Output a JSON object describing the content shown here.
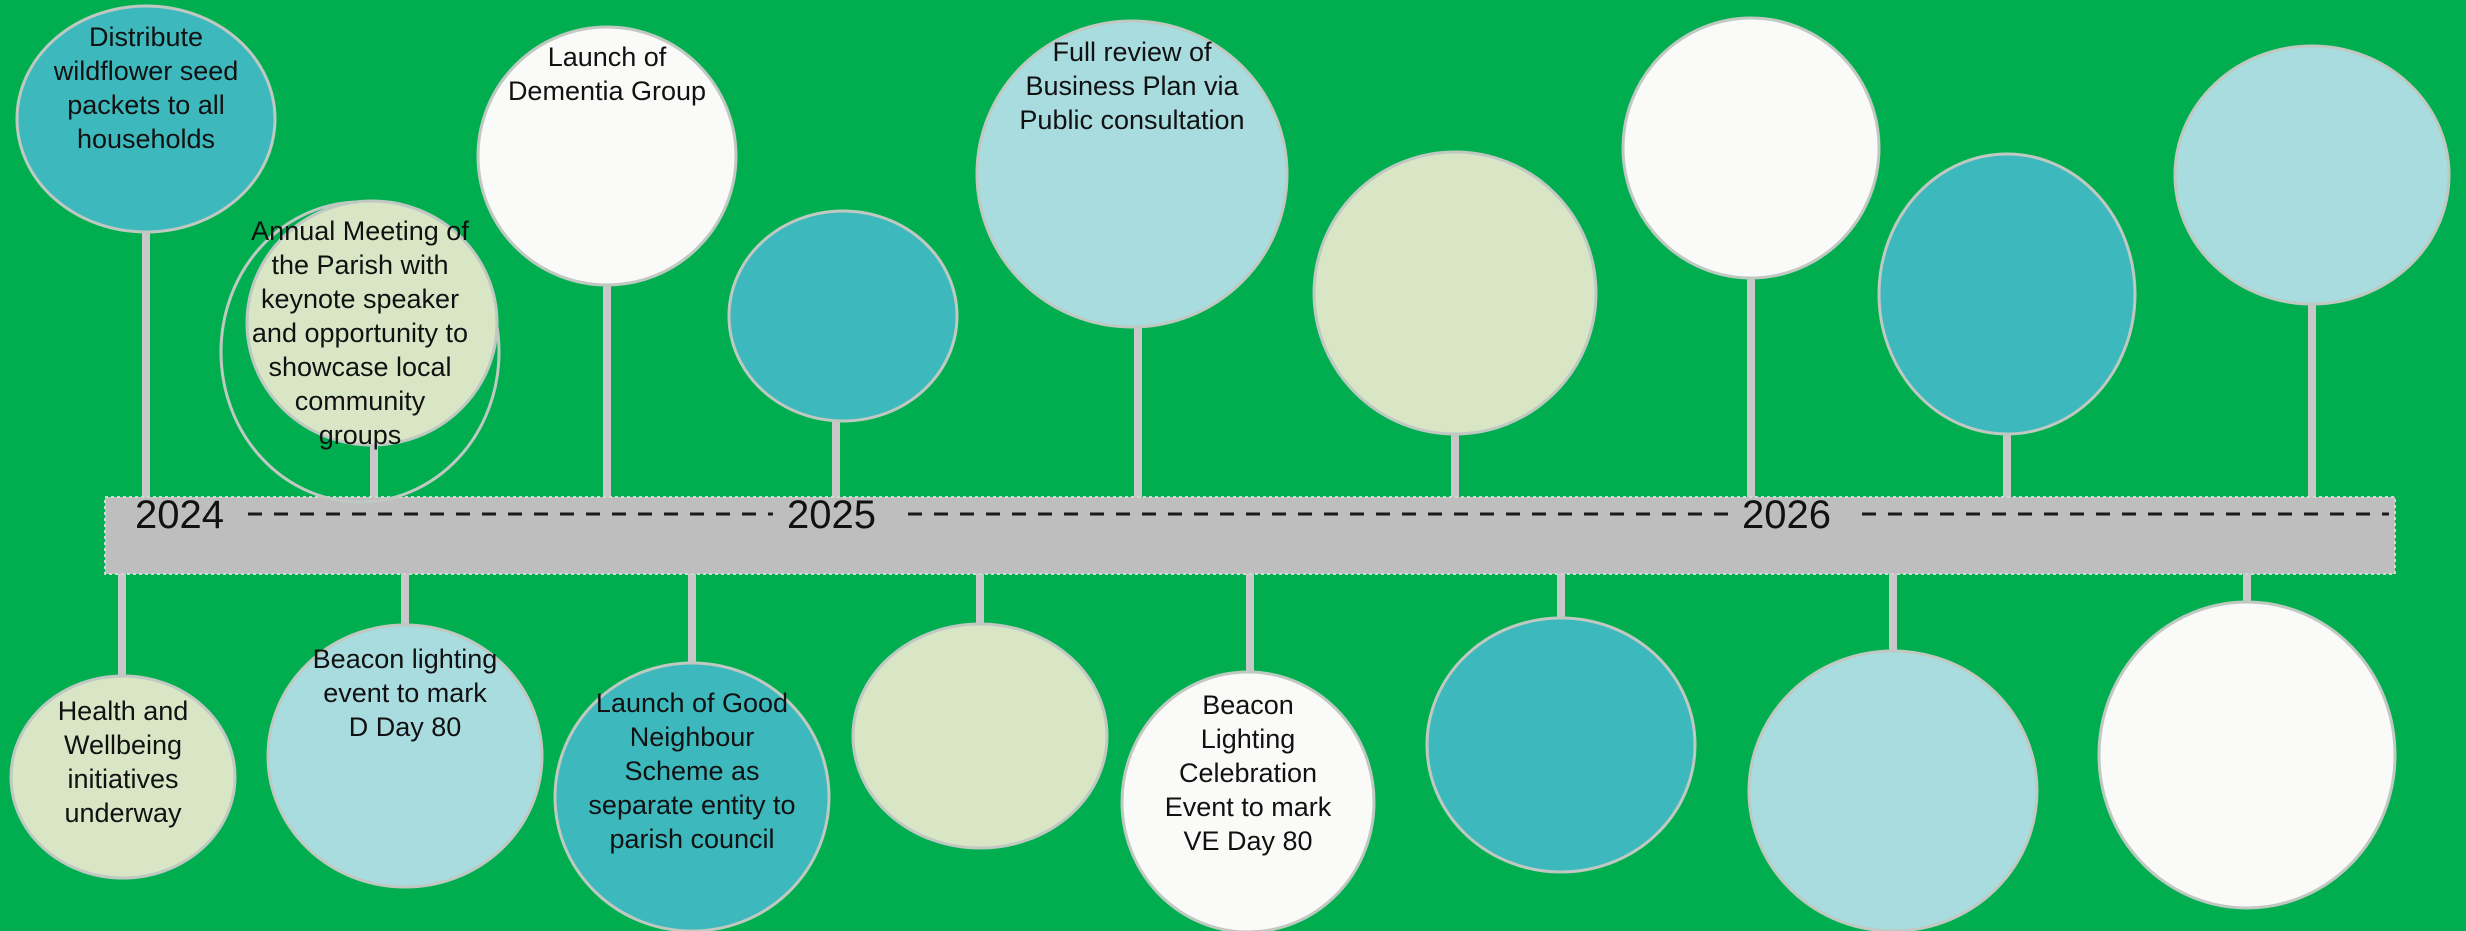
{
  "colors": {
    "background": "#00AE4F",
    "bar": "#BEBEBE",
    "stem": "#C8C8C8",
    "outline": "#BFC9C2",
    "palette": {
      "teal": "#3DB8BD",
      "light_blue": "#A8DCDF",
      "sage": "#D8E6C6",
      "white": "#FAFAF8"
    }
  },
  "timeline": {
    "years": [
      {
        "label": "2024"
      },
      {
        "label": "2025"
      },
      {
        "label": "2026"
      }
    ]
  },
  "events": [
    {
      "id": "e1",
      "side": "above",
      "color": "teal",
      "lines": [
        "Distribute",
        "wildflower seed",
        "packets to all",
        "households"
      ]
    },
    {
      "id": "e2",
      "side": "above",
      "color": "sage",
      "lines": [
        "Annual Meeting of",
        "the Parish with",
        "keynote speaker",
        "and opportunity to",
        "showcase local",
        "community",
        "groups"
      ]
    },
    {
      "id": "e3",
      "side": "above",
      "color": "white",
      "lines": [
        "Launch of",
        "Dementia Group"
      ]
    },
    {
      "id": "e4",
      "side": "above",
      "color": "teal",
      "lines": []
    },
    {
      "id": "e5",
      "side": "above",
      "color": "light_blue",
      "lines": [
        "Full review of",
        "Business Plan via",
        "Public consultation"
      ]
    },
    {
      "id": "e6",
      "side": "above",
      "color": "sage",
      "lines": []
    },
    {
      "id": "e7",
      "side": "above",
      "color": "white",
      "lines": []
    },
    {
      "id": "e8",
      "side": "above",
      "color": "teal",
      "lines": []
    },
    {
      "id": "e9",
      "side": "above",
      "color": "light_blue",
      "lines": []
    },
    {
      "id": "e10",
      "side": "below",
      "color": "sage",
      "lines": [
        "Health and",
        "Wellbeing",
        "initiatives",
        "underway"
      ]
    },
    {
      "id": "e11",
      "side": "below",
      "color": "light_blue",
      "lines": [
        "Beacon lighting",
        "event to mark",
        "D Day 80"
      ]
    },
    {
      "id": "e12",
      "side": "below",
      "color": "teal",
      "lines": [
        "Launch of Good",
        "Neighbour",
        "Scheme as",
        "separate entity to",
        "parish council"
      ]
    },
    {
      "id": "e13",
      "side": "below",
      "color": "sage",
      "lines": []
    },
    {
      "id": "e14",
      "side": "below",
      "color": "white",
      "lines": [
        "Beacon",
        "Lighting",
        "Celebration",
        "Event to mark",
        "VE Day 80"
      ]
    },
    {
      "id": "e15",
      "side": "below",
      "color": "teal",
      "lines": []
    },
    {
      "id": "e16",
      "side": "below",
      "color": "light_blue",
      "lines": []
    },
    {
      "id": "e17",
      "side": "below",
      "color": "white",
      "lines": []
    }
  ]
}
